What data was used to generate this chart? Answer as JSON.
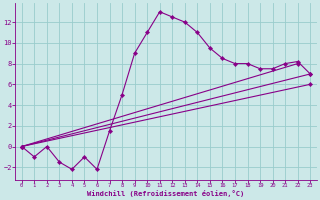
{
  "xlabel": "Windchill (Refroidissement éolien,°C)",
  "bg_color": "#cce8e8",
  "line_color": "#880088",
  "xlim": [
    -0.5,
    23.5
  ],
  "ylim": [
    -3.2,
    13.8
  ],
  "xticks": [
    0,
    1,
    2,
    3,
    4,
    5,
    6,
    7,
    8,
    9,
    10,
    11,
    12,
    13,
    14,
    15,
    16,
    17,
    18,
    19,
    20,
    21,
    22,
    23
  ],
  "yticks": [
    -2,
    0,
    2,
    4,
    6,
    8,
    10,
    12
  ],
  "grid_color": "#99cccc",
  "series1_x": [
    0,
    1,
    2,
    3,
    4,
    5,
    6,
    7,
    8,
    9,
    10,
    11,
    12,
    13,
    14,
    15,
    16,
    17,
    18,
    19,
    20,
    21,
    22,
    23
  ],
  "series1_y": [
    0,
    -1,
    0,
    -1.5,
    -2.2,
    -1.0,
    -2.2,
    1.5,
    5,
    9,
    11,
    13,
    12.5,
    12.0,
    11.0,
    9.5,
    8.5,
    8.0,
    8.0,
    7.5,
    7.5,
    8.0,
    8.2,
    7.0
  ],
  "line2_x": [
    0,
    23
  ],
  "line2_y": [
    0,
    7.0
  ],
  "line3_x": [
    0,
    23
  ],
  "line3_y": [
    0,
    6.0
  ],
  "line4_x": [
    0,
    22
  ],
  "line4_y": [
    0,
    8.0
  ]
}
